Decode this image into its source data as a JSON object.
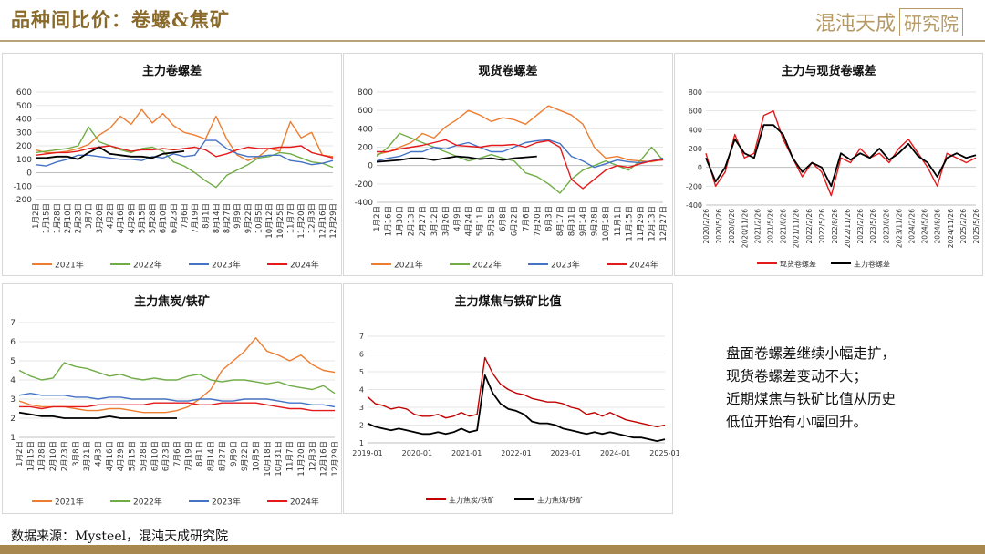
{
  "header": {
    "title": "品种间比价：卷螺&焦矿",
    "logo_text": "混沌天成",
    "logo_box": "研究院"
  },
  "note": {
    "lines": [
      "盘面卷螺差继续小幅走扩，",
      "现货卷螺差变动不大；",
      "近期煤焦与铁矿比值从历史",
      "低位开始有小幅回升。"
    ]
  },
  "source": "数据来源：Mysteel，混沌天成研究院",
  "colors": {
    "2021": "#ed7d31",
    "2022": "#70ad47",
    "2023": "#4472c4",
    "2024": "#e31a1c",
    "2025": "#000000"
  },
  "chart_data": [
    {
      "id": "c1",
      "type": "line",
      "title": "主力卷螺差",
      "ylim": [
        -200,
        600
      ],
      "yticks": [
        -200,
        -100,
        0,
        100,
        200,
        300,
        400,
        500,
        600
      ],
      "xticks": [
        "1月2日",
        "1月15日",
        "1月28日",
        "2月10日",
        "2月23日",
        "3月7日",
        "3月20日",
        "4月2日",
        "4月16日",
        "4月29日",
        "5月15日",
        "5月28日",
        "6月10日",
        "6月23日",
        "7月6日",
        "7月19日",
        "8月1日",
        "8月14日",
        "8月27日",
        "9月9日",
        "9月22日",
        "10月5日",
        "10月12日",
        "10月25日",
        "11月7日",
        "11月20日",
        "12月3日",
        "12月16日",
        "12月29日"
      ],
      "series": [
        {
          "name": "2021年",
          "color": "#ed7d31",
          "values": [
            170,
            150,
            150,
            160,
            180,
            210,
            280,
            330,
            420,
            360,
            470,
            370,
            440,
            350,
            300,
            280,
            250,
            420,
            250,
            130,
            90,
            120,
            180,
            160,
            380,
            260,
            300,
            130,
            120
          ]
        },
        {
          "name": "2022年",
          "color": "#70ad47",
          "values": [
            150,
            160,
            170,
            180,
            200,
            340,
            230,
            200,
            170,
            150,
            180,
            190,
            160,
            80,
            50,
            0,
            -60,
            -110,
            -20,
            20,
            60,
            110,
            120,
            150,
            140,
            110,
            80,
            70,
            40
          ]
        },
        {
          "name": "2023年",
          "color": "#4472c4",
          "values": [
            60,
            50,
            80,
            100,
            130,
            130,
            120,
            110,
            100,
            100,
            90,
            120,
            110,
            140,
            120,
            130,
            240,
            240,
            180,
            140,
            120,
            120,
            130,
            130,
            90,
            80,
            60,
            70,
            90
          ]
        },
        {
          "name": "2024年",
          "color": "#e31a1c",
          "values": [
            130,
            140,
            150,
            150,
            160,
            180,
            190,
            200,
            180,
            160,
            170,
            170,
            180,
            170,
            180,
            190,
            170,
            120,
            140,
            170,
            190,
            180,
            180,
            190,
            190,
            200,
            150,
            130,
            110
          ]
        },
        {
          "name": "2025年",
          "color": "#000000",
          "values": [
            110,
            110,
            120,
            120,
            100,
            150,
            190,
            140,
            130,
            120,
            120,
            110,
            140,
            150,
            160
          ]
        }
      ]
    },
    {
      "id": "c2",
      "type": "line",
      "title": "现货卷螺差",
      "ylim": [
        -400,
        800
      ],
      "yticks": [
        -400,
        -200,
        0,
        200,
        400,
        600,
        800
      ],
      "xticks": [
        "1月2日",
        "1月16日",
        "1月30日",
        "2月13日",
        "2月27日",
        "3月12日",
        "3月26日",
        "4月9日",
        "4月24日",
        "5月11日",
        "5月25日",
        "6月8日",
        "6月22日",
        "7月6日",
        "7月20日",
        "8月3日",
        "8月17日",
        "8月31日",
        "9月14日",
        "9月28日",
        "10月18日",
        "11月1日",
        "11月15日",
        "11月29日",
        "12月13日",
        "12月27日"
      ],
      "series": [
        {
          "name": "2021年",
          "color": "#ed7d31",
          "values": [
            120,
            150,
            200,
            250,
            350,
            300,
            420,
            500,
            600,
            550,
            480,
            520,
            500,
            450,
            550,
            650,
            600,
            550,
            450,
            200,
            80,
            100,
            60,
            50,
            40,
            70
          ]
        },
        {
          "name": "2022年",
          "color": "#70ad47",
          "values": [
            100,
            200,
            350,
            300,
            250,
            200,
            150,
            100,
            50,
            80,
            120,
            80,
            50,
            -80,
            -120,
            -200,
            -300,
            -150,
            -50,
            0,
            50,
            0,
            -50,
            50,
            200,
            60
          ]
        },
        {
          "name": "2023年",
          "color": "#4472c4",
          "values": [
            50,
            80,
            100,
            150,
            150,
            200,
            180,
            220,
            250,
            200,
            150,
            150,
            200,
            250,
            270,
            280,
            240,
            100,
            50,
            -20,
            20,
            60,
            40,
            30,
            50,
            80
          ]
        },
        {
          "name": "2024年",
          "color": "#e31a1c",
          "values": [
            150,
            150,
            180,
            200,
            220,
            250,
            280,
            220,
            210,
            200,
            220,
            220,
            230,
            200,
            250,
            270,
            200,
            -150,
            -250,
            -150,
            -50,
            0,
            -20,
            20,
            50,
            60
          ]
        },
        {
          "name": "2025年",
          "color": "#000000",
          "values": [
            40,
            50,
            60,
            80,
            80,
            60,
            80,
            100,
            90,
            70,
            80,
            60,
            80,
            90,
            100
          ]
        }
      ]
    },
    {
      "id": "c3",
      "type": "line",
      "title": "主力与现货卷螺差",
      "ylim": [
        -400,
        800
      ],
      "yticks": [
        -400,
        -200,
        0,
        200,
        400,
        600,
        800
      ],
      "xticks": [
        "2020/2/26",
        "2020/5/26",
        "2020/8/26",
        "2020/11/26",
        "2021/2/26",
        "2021/5/26",
        "2021/8/26",
        "2021/11/26",
        "2022/2/26",
        "2022/5/26",
        "2022/8/26",
        "2022/11/26",
        "2023/2/26",
        "2023/5/26",
        "2023/8/26",
        "2023/11/26",
        "2024/2/26",
        "2024/5/26",
        "2024/8/26",
        "2024/11/26",
        "2025/2/26",
        "2025/5/26"
      ],
      "series": [
        {
          "name": "现货卷螺差",
          "color": "#e31a1c",
          "values": [
            150,
            -200,
            -50,
            350,
            100,
            150,
            550,
            600,
            300,
            100,
            -100,
            50,
            -50,
            -300,
            100,
            50,
            200,
            100,
            150,
            50,
            200,
            300,
            150,
            0,
            -200,
            150,
            100,
            50,
            100
          ]
        },
        {
          "name": "主力卷螺差",
          "color": "#000000",
          "values": [
            100,
            -150,
            0,
            300,
            150,
            100,
            450,
            450,
            350,
            100,
            -50,
            50,
            0,
            -200,
            150,
            80,
            150,
            100,
            200,
            80,
            150,
            250,
            120,
            50,
            -100,
            100,
            150,
            100,
            130
          ]
        }
      ]
    },
    {
      "id": "c4",
      "type": "line",
      "title": "主力焦炭/铁矿",
      "ylim": [
        1,
        7
      ],
      "yticks": [
        1,
        2,
        3,
        4,
        5,
        6,
        7
      ],
      "xticks": [
        "1月2日",
        "1月15日",
        "1月28日",
        "2月10日",
        "2月23日",
        "3月8日",
        "3月21日",
        "4月3日",
        "4月16日",
        "4月29日",
        "5月15日",
        "5月28日",
        "6月10日",
        "6月23日",
        "7月6日",
        "7月19日",
        "8月1日",
        "8月14日",
        "8月27日",
        "9月9日",
        "9月22日",
        "10月5日",
        "10月18日",
        "10月31日",
        "11月7日",
        "11月20日",
        "12月3日",
        "12月16日",
        "12月29日"
      ],
      "series": [
        {
          "name": "2021年",
          "color": "#ed7d31",
          "values": [
            2.9,
            2.7,
            2.6,
            2.6,
            2.6,
            2.5,
            2.4,
            2.4,
            2.5,
            2.5,
            2.4,
            2.3,
            2.3,
            2.3,
            2.4,
            2.6,
            3.0,
            3.5,
            4.5,
            5.0,
            5.5,
            6.2,
            5.5,
            5.3,
            5.0,
            5.3,
            4.8,
            4.5,
            4.4
          ]
        },
        {
          "name": "2022年",
          "color": "#70ad47",
          "values": [
            4.5,
            4.2,
            4.0,
            4.1,
            4.9,
            4.7,
            4.6,
            4.4,
            4.2,
            4.3,
            4.1,
            4.0,
            4.1,
            4.0,
            4.0,
            4.2,
            4.3,
            4.0,
            3.9,
            4.0,
            4.0,
            3.9,
            3.8,
            3.9,
            3.7,
            3.6,
            3.5,
            3.7,
            3.3
          ]
        },
        {
          "name": "2023年",
          "color": "#4472c4",
          "values": [
            3.2,
            3.3,
            3.2,
            3.2,
            3.2,
            3.1,
            3.1,
            3.0,
            3.1,
            3.1,
            3.0,
            3.0,
            3.0,
            3.0,
            2.9,
            2.9,
            3.0,
            3.0,
            2.9,
            2.9,
            3.0,
            3.0,
            3.0,
            2.9,
            2.8,
            2.8,
            2.7,
            2.7,
            2.6
          ]
        },
        {
          "name": "2024年",
          "color": "#e31a1c",
          "values": [
            2.6,
            2.6,
            2.5,
            2.6,
            2.6,
            2.6,
            2.6,
            2.7,
            2.7,
            2.7,
            2.7,
            2.7,
            2.8,
            2.8,
            2.8,
            2.8,
            2.7,
            2.7,
            2.8,
            2.8,
            2.8,
            2.8,
            2.7,
            2.6,
            2.5,
            2.5,
            2.4,
            2.4,
            2.4
          ]
        },
        {
          "name": "2025年",
          "color": "#000000",
          "values": [
            2.3,
            2.2,
            2.1,
            2.1,
            2.0,
            2.0,
            2.0,
            2.0,
            2.1,
            2.0,
            2.0,
            2.0,
            2.0,
            2.0,
            2.0
          ]
        }
      ]
    },
    {
      "id": "c5",
      "type": "line",
      "title": "主力煤焦与铁矿比值",
      "ylim": [
        1,
        7
      ],
      "yticks": [
        1,
        2,
        3,
        4,
        5,
        6,
        7
      ],
      "xticks": [
        "2019-01",
        "2020-01",
        "2021-01",
        "2022-01",
        "2023-01",
        "2024-01",
        "2025-01"
      ],
      "series": [
        {
          "name": "主力焦炭/铁矿",
          "color": "#c00000",
          "values": [
            3.6,
            3.2,
            3.1,
            2.9,
            3.0,
            2.9,
            2.6,
            2.5,
            2.5,
            2.6,
            2.4,
            2.5,
            2.7,
            2.5,
            2.6,
            5.8,
            4.9,
            4.3,
            4.0,
            3.8,
            3.7,
            3.5,
            3.4,
            3.3,
            3.3,
            3.2,
            3.0,
            2.9,
            2.6,
            2.7,
            2.5,
            2.7,
            2.5,
            2.3,
            2.2,
            2.1,
            2.0,
            1.9,
            2.0
          ]
        },
        {
          "name": "主力焦煤/铁矿",
          "color": "#000000",
          "values": [
            2.1,
            1.9,
            1.8,
            1.7,
            1.8,
            1.7,
            1.6,
            1.5,
            1.5,
            1.6,
            1.5,
            1.6,
            1.8,
            1.6,
            1.7,
            4.8,
            3.8,
            3.2,
            2.9,
            2.8,
            2.6,
            2.2,
            2.1,
            2.1,
            2.0,
            1.8,
            1.7,
            1.6,
            1.5,
            1.6,
            1.5,
            1.6,
            1.5,
            1.4,
            1.3,
            1.3,
            1.2,
            1.1,
            1.2
          ]
        }
      ]
    }
  ]
}
